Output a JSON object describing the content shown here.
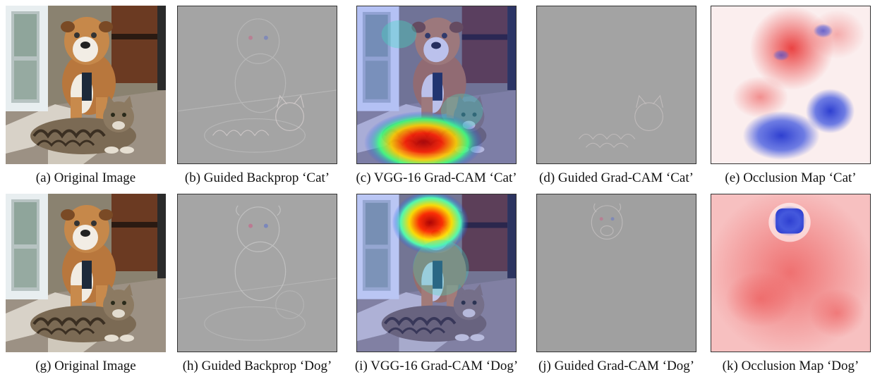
{
  "figure": {
    "captions": [
      "(a) Original Image",
      "(b) Guided Backprop ‘Cat’",
      "(c) VGG-16 Grad-CAM ‘Cat’",
      "(d) Guided Grad-CAM ‘Cat’",
      "(e) Occlusion Map ‘Cat’",
      "(g) Original Image",
      "(h) Guided Backprop ‘Dog’",
      "(i) VGG-16 Grad-CAM ‘Dog’",
      "(j) Guided Grad-CAM ‘Dog’",
      "(k) Occlusion Map ‘Dog’"
    ]
  },
  "colors": {
    "gray_background": "#a3a3a3",
    "heatmap_hot": "#d40000",
    "heatmap_cool": "#2a3bd8",
    "occlusion_red": "#ee3a3a",
    "occlusion_blue": "#3c55d8"
  }
}
